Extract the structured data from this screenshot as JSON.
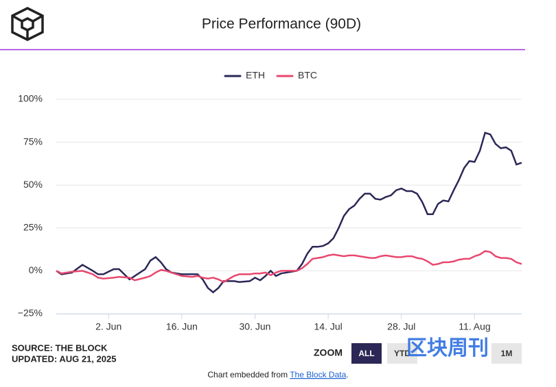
{
  "header": {
    "title": "Price Performance (90D)"
  },
  "chart_data": {
    "type": "line",
    "x": [
      0,
      1,
      3,
      5,
      7,
      8,
      9,
      11,
      12,
      14,
      15,
      17,
      18,
      19,
      20,
      21,
      22,
      24,
      26,
      27,
      28,
      29,
      30,
      31,
      32,
      34,
      35,
      37,
      38,
      39,
      40,
      41,
      42,
      43,
      45,
      46,
      47,
      48,
      49,
      50,
      51,
      52,
      53,
      54,
      55,
      56,
      57,
      58,
      59,
      60,
      61,
      62,
      63,
      64,
      65,
      66,
      67,
      68,
      69,
      70,
      71,
      72,
      73,
      74,
      75,
      76,
      77,
      78,
      79,
      80,
      81,
      82,
      83,
      84,
      85,
      86,
      87,
      88,
      89
    ],
    "xlim": [
      0,
      89
    ],
    "xticks": [
      {
        "value": 10,
        "label": "2. Jun"
      },
      {
        "value": 24,
        "label": "16. Jun"
      },
      {
        "value": 38,
        "label": "30. Jun"
      },
      {
        "value": 52,
        "label": "14. Jul"
      },
      {
        "value": 66,
        "label": "28. Jul"
      },
      {
        "value": 80,
        "label": "11. Aug"
      }
    ],
    "ylim": [
      -25,
      100
    ],
    "yticks": [
      {
        "value": -25,
        "label": "−25%"
      },
      {
        "value": 0,
        "label": "0%"
      },
      {
        "value": 25,
        "label": "25%"
      },
      {
        "value": 50,
        "label": "50%"
      },
      {
        "value": 75,
        "label": "75%"
      },
      {
        "value": 100,
        "label": "100%"
      }
    ],
    "grid": true,
    "legend": "top",
    "series": [
      {
        "name": "ETH",
        "color": "#2b2756",
        "values": [
          0,
          -2,
          -1,
          3.5,
          0,
          -2,
          -2,
          1,
          1,
          -5,
          -3,
          1,
          6,
          8,
          5,
          1,
          -1,
          -2,
          -2,
          -2,
          -5,
          -10,
          -12.5,
          -10,
          -6,
          -6,
          -6.5,
          -6,
          -4,
          -5.5,
          -3,
          0,
          -3,
          -1.5,
          -0.5,
          0,
          4,
          10,
          14,
          14,
          14.5,
          16,
          19,
          25,
          32,
          36,
          38,
          42,
          45,
          45,
          42,
          41.5,
          43,
          44,
          47,
          48,
          46.5,
          46.5,
          45,
          40,
          33,
          33,
          39,
          41,
          40.5,
          47,
          53,
          60,
          64,
          63.5,
          70,
          80.5,
          79.5,
          74,
          71.5,
          72,
          70,
          62,
          63
        ]
      },
      {
        "name": "BTC",
        "color": "#e8476f",
        "values": [
          0,
          -1.5,
          -0.5,
          0,
          -2,
          -4,
          -4.5,
          -4,
          -3.5,
          -4,
          -5.5,
          -4,
          -3,
          -1,
          0.5,
          0,
          -1,
          -3,
          -3.5,
          -3,
          -4,
          -4.5,
          -4,
          -5,
          -6.5,
          -3,
          -2,
          -2,
          -1.5,
          -1.5,
          -1,
          -2.5,
          -1,
          0,
          0,
          0,
          1.5,
          4,
          7,
          7.5,
          8,
          9,
          9.5,
          9,
          8.5,
          9,
          9,
          8.5,
          8,
          7.5,
          7.5,
          8.5,
          9,
          8.5,
          8,
          8,
          8.5,
          8.5,
          7.5,
          7,
          5.5,
          3.5,
          4,
          5,
          5,
          5.5,
          6.5,
          7,
          7,
          8.5,
          9.5,
          11.5,
          11,
          8.5,
          7.5,
          7.5,
          7,
          5,
          4
        ]
      }
    ]
  },
  "footer": {
    "source": "SOURCE: THE BLOCK",
    "updated": "UPDATED: AUG 21, 2025",
    "zoom_label": "ZOOM",
    "zoom_buttons": [
      "ALL",
      "YTD",
      "1M"
    ],
    "embed_prefix": "Chart embedded from ",
    "embed_link": "The Block Data",
    "embed_suffix": "."
  },
  "watermark": "区块周刊"
}
